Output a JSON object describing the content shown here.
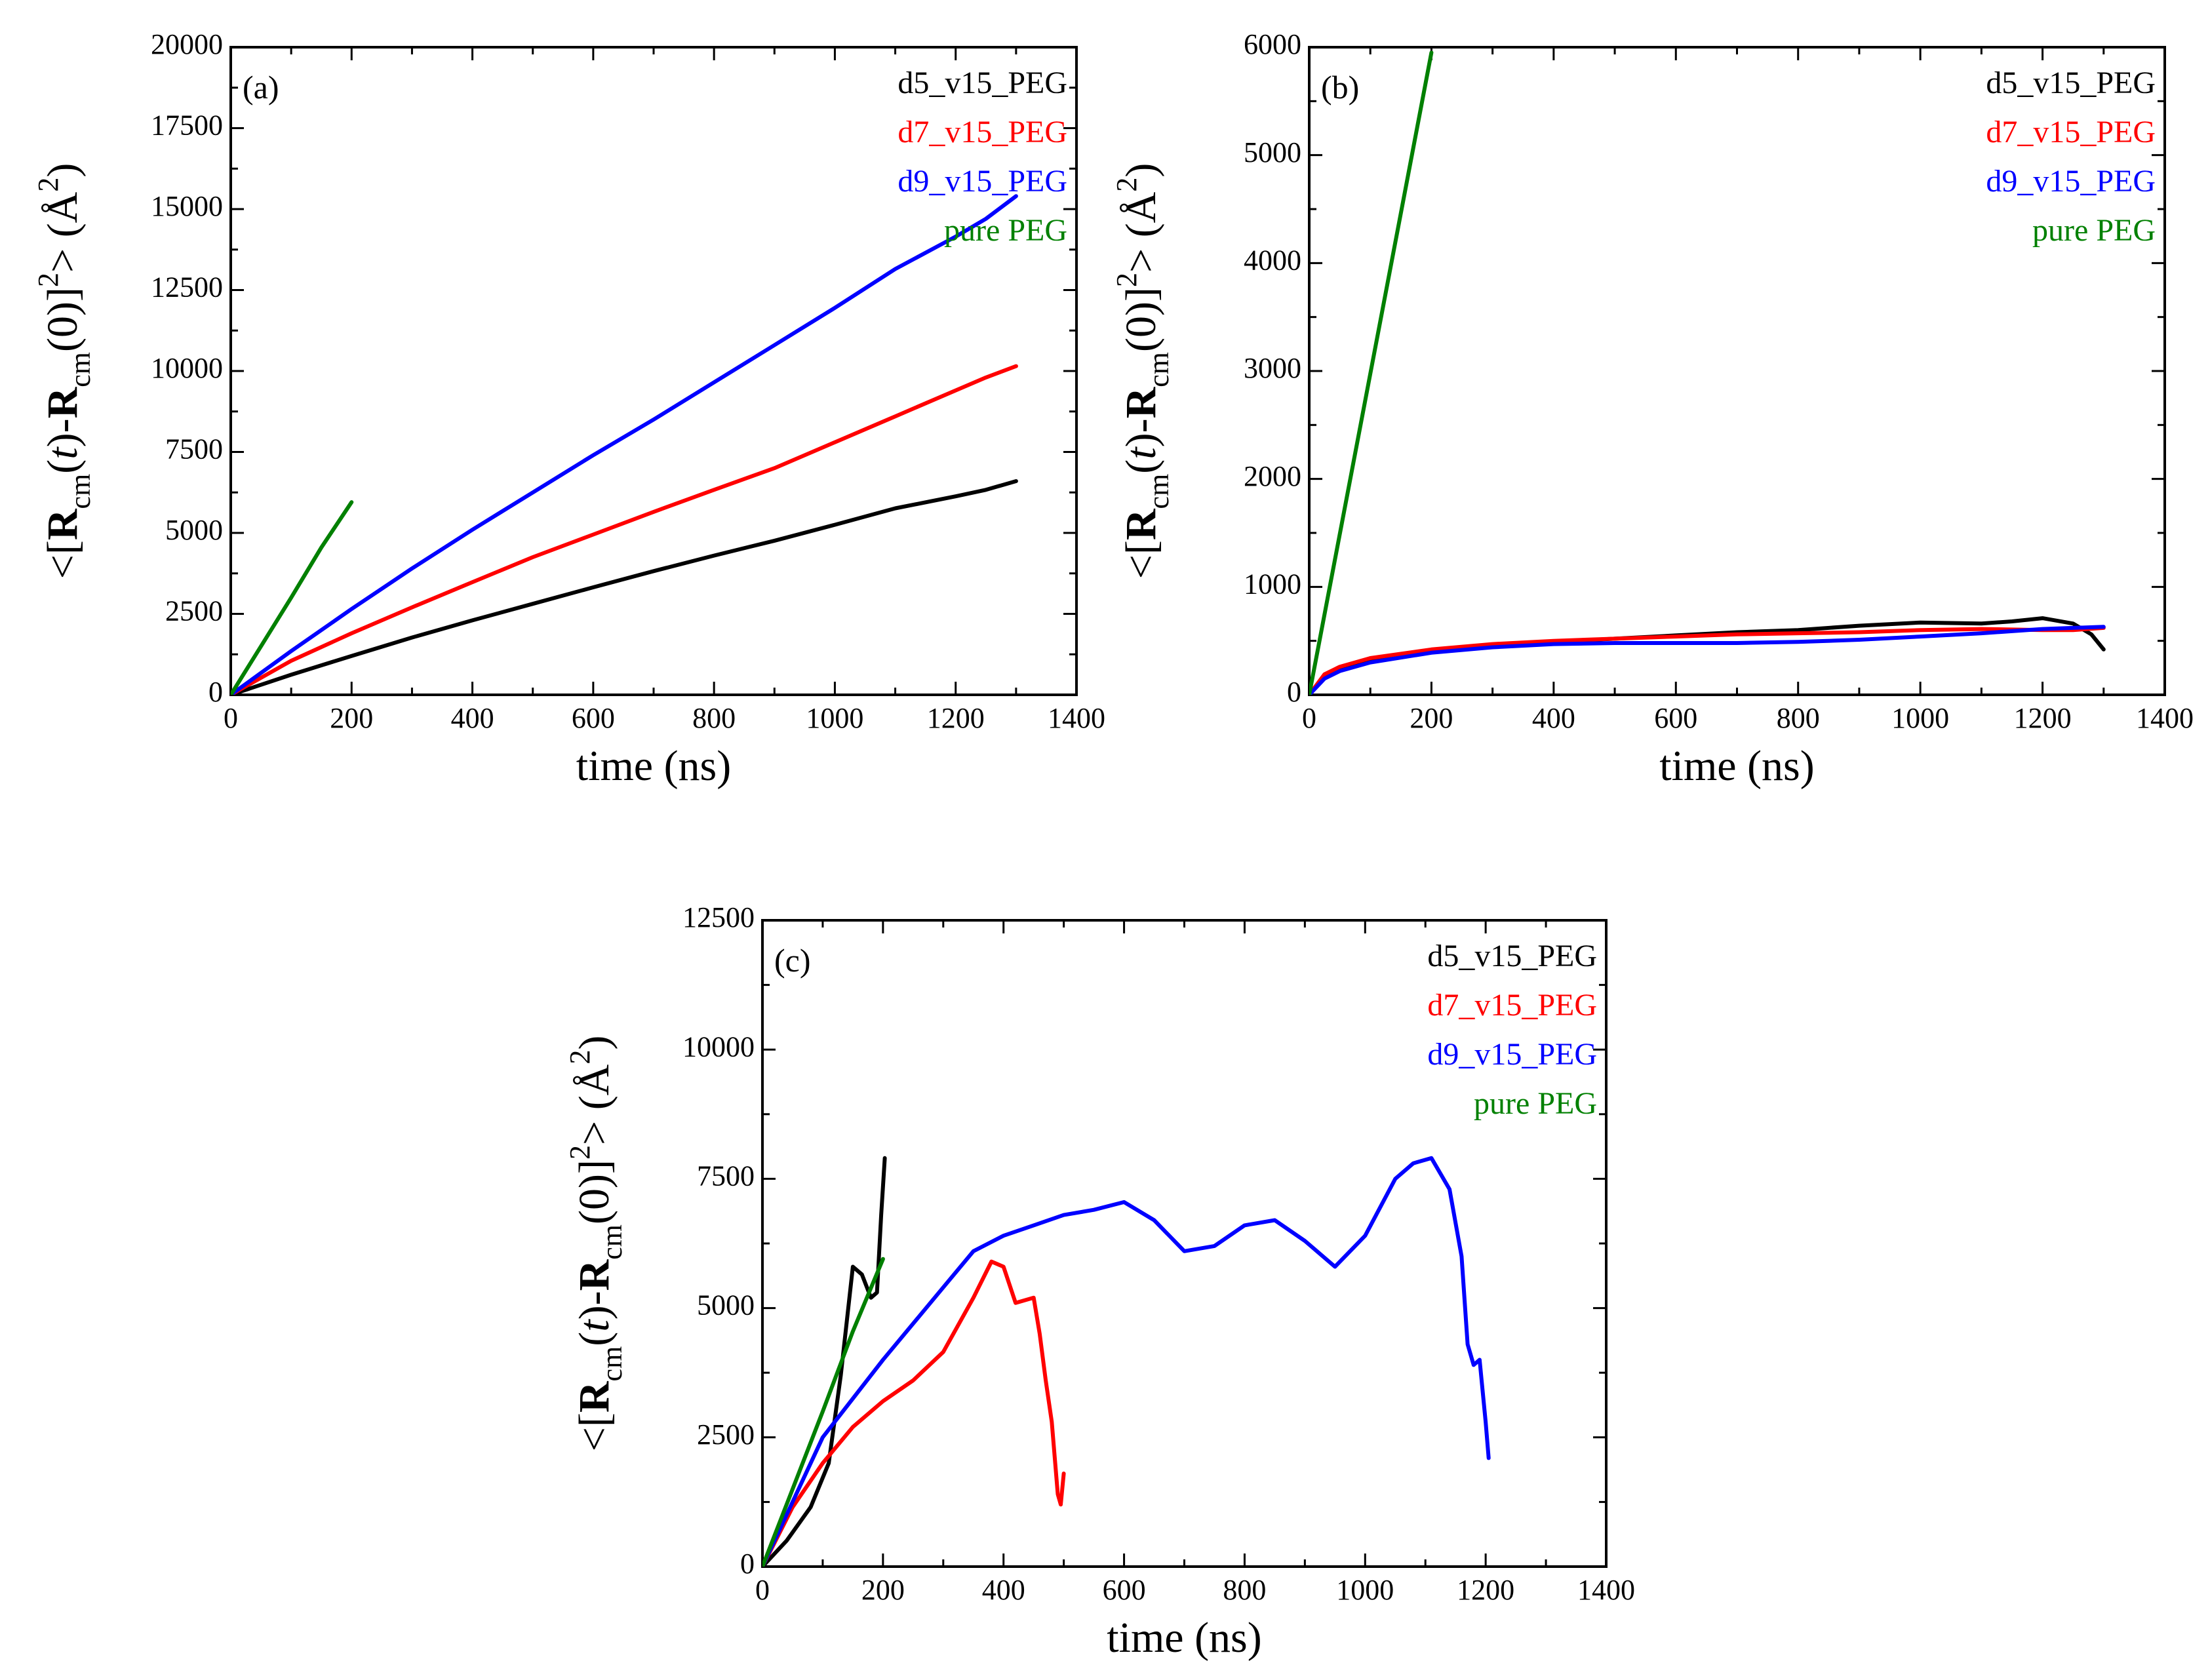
{
  "colors": {
    "black": "#000000",
    "red": "#ff0000",
    "blue": "#0000ff",
    "green": "#008000"
  },
  "chart_data": [
    {
      "type": "line",
      "panel_label": "(a)",
      "xlabel": "time (ns)",
      "ylabel": "<[R_cm(t)-R_cm(0)]^2> (Å^2)",
      "xlim": [
        0,
        1400
      ],
      "ylim": [
        0,
        20000
      ],
      "xticks": [
        0,
        200,
        400,
        600,
        800,
        1000,
        1200,
        1400
      ],
      "yticks": [
        0,
        2500,
        5000,
        7500,
        10000,
        12500,
        15000,
        17500,
        20000
      ],
      "legend_position": "top-right",
      "series": [
        {
          "name": "d5_v15_PEG",
          "color": "#000000",
          "x": [
            0,
            100,
            200,
            300,
            400,
            500,
            600,
            700,
            800,
            900,
            1000,
            1100,
            1200,
            1250,
            1300
          ],
          "y": [
            0,
            620,
            1200,
            1770,
            2300,
            2810,
            3320,
            3820,
            4300,
            4760,
            5250,
            5760,
            6130,
            6330,
            6600
          ]
        },
        {
          "name": "d7_v15_PEG",
          "color": "#ff0000",
          "x": [
            0,
            100,
            200,
            300,
            400,
            500,
            600,
            700,
            800,
            900,
            1000,
            1100,
            1200,
            1250,
            1300
          ],
          "y": [
            0,
            1050,
            1900,
            2700,
            3480,
            4250,
            4950,
            5650,
            6330,
            7000,
            7800,
            8600,
            9400,
            9800,
            10150
          ]
        },
        {
          "name": "d9_v15_PEG",
          "color": "#0000ff",
          "x": [
            0,
            100,
            200,
            300,
            400,
            500,
            600,
            700,
            800,
            900,
            1000,
            1100,
            1200,
            1250,
            1300
          ],
          "y": [
            0,
            1350,
            2650,
            3900,
            5100,
            6250,
            7400,
            8500,
            9650,
            10800,
            11950,
            13150,
            14150,
            14700,
            15400
          ]
        },
        {
          "name": "pure PEG",
          "color": "#008000",
          "x": [
            0,
            50,
            100,
            150,
            200
          ],
          "y": [
            0,
            1500,
            3000,
            4550,
            5950
          ]
        }
      ]
    },
    {
      "type": "line",
      "panel_label": "(b)",
      "xlabel": "time (ns)",
      "ylabel": "<[R_cm(t)-R_cm(0)]^2> (Å^2)",
      "xlim": [
        0,
        1400
      ],
      "ylim": [
        0,
        6000
      ],
      "xticks": [
        0,
        200,
        400,
        600,
        800,
        1000,
        1200,
        1400
      ],
      "yticks": [
        0,
        1000,
        2000,
        3000,
        4000,
        5000,
        6000
      ],
      "legend_position": "top-right",
      "series": [
        {
          "name": "d5_v15_PEG",
          "color": "#000000",
          "x": [
            0,
            25,
            50,
            100,
            200,
            300,
            400,
            500,
            600,
            700,
            800,
            900,
            1000,
            1100,
            1150,
            1200,
            1250,
            1280,
            1300
          ],
          "y": [
            0,
            170,
            240,
            310,
            400,
            450,
            490,
            520,
            550,
            580,
            600,
            640,
            670,
            660,
            680,
            710,
            660,
            560,
            420
          ]
        },
        {
          "name": "d7_v15_PEG",
          "color": "#ff0000",
          "x": [
            0,
            25,
            50,
            100,
            200,
            300,
            400,
            500,
            600,
            700,
            800,
            900,
            1000,
            1100,
            1200,
            1250,
            1300
          ],
          "y": [
            0,
            190,
            260,
            340,
            420,
            470,
            500,
            520,
            540,
            560,
            570,
            580,
            600,
            610,
            600,
            600,
            620
          ]
        },
        {
          "name": "d9_v15_PEG",
          "color": "#0000ff",
          "x": [
            0,
            25,
            50,
            100,
            200,
            300,
            400,
            500,
            600,
            700,
            800,
            900,
            1000,
            1100,
            1200,
            1250,
            1300
          ],
          "y": [
            0,
            150,
            220,
            300,
            390,
            440,
            470,
            480,
            480,
            480,
            490,
            510,
            540,
            570,
            610,
            620,
            630
          ]
        },
        {
          "name": "pure PEG",
          "color": "#008000",
          "x": [
            0,
            200
          ],
          "y": [
            0,
            5950
          ]
        }
      ]
    },
    {
      "type": "line",
      "panel_label": "(c)",
      "xlabel": "time (ns)",
      "ylabel": "<[R_cm(t)-R_cm(0)]^2> (Å^2)",
      "xlim": [
        0,
        1400
      ],
      "ylim": [
        0,
        12500
      ],
      "xticks": [
        0,
        200,
        400,
        600,
        800,
        1000,
        1200,
        1400
      ],
      "yticks": [
        0,
        2500,
        5000,
        7500,
        10000,
        12500
      ],
      "legend_position": "top-right",
      "series": [
        {
          "name": "d5_v15_PEG",
          "color": "#000000",
          "x": [
            0,
            40,
            80,
            110,
            130,
            150,
            165,
            180,
            190,
            197,
            203
          ],
          "y": [
            0,
            500,
            1150,
            2000,
            3700,
            5800,
            5650,
            5200,
            5300,
            6800,
            7900
          ]
        },
        {
          "name": "d7_v15_PEG",
          "color": "#ff0000",
          "x": [
            0,
            50,
            100,
            150,
            200,
            250,
            300,
            350,
            380,
            400,
            420,
            450,
            460,
            470,
            480,
            490,
            495,
            500
          ],
          "y": [
            0,
            1150,
            2000,
            2700,
            3200,
            3600,
            4150,
            5200,
            5900,
            5800,
            5100,
            5200,
            4500,
            3600,
            2800,
            1400,
            1200,
            1800
          ]
        },
        {
          "name": "d9_v15_PEG",
          "color": "#0000ff",
          "x": [
            0,
            100,
            200,
            300,
            350,
            400,
            450,
            500,
            550,
            600,
            650,
            700,
            750,
            800,
            850,
            900,
            950,
            1000,
            1050,
            1080,
            1110,
            1140,
            1160,
            1170,
            1180,
            1190,
            1200,
            1205
          ],
          "y": [
            0,
            2500,
            4000,
            5400,
            6100,
            6400,
            6600,
            6800,
            6900,
            7050,
            6700,
            6100,
            6200,
            6600,
            6700,
            6300,
            5800,
            6400,
            7500,
            7800,
            7900,
            7300,
            6000,
            4300,
            3900,
            4000,
            2800,
            2100
          ]
        },
        {
          "name": "pure PEG",
          "color": "#008000",
          "x": [
            0,
            50,
            100,
            150,
            200
          ],
          "y": [
            0,
            1500,
            3000,
            4550,
            5950
          ]
        }
      ]
    }
  ]
}
